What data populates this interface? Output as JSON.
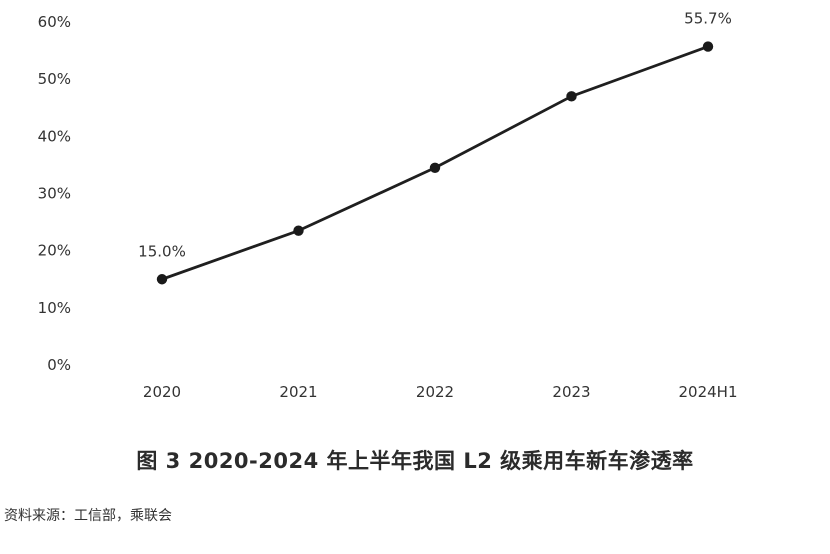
{
  "chart_data": {
    "type": "line",
    "title": "图 3 2020-2024 年上半年我国 L2 级乘用车新车渗透率",
    "xlabel": "",
    "ylabel": "",
    "categories": [
      "2020",
      "2021",
      "2022",
      "2023",
      "2024H1"
    ],
    "series": [
      {
        "values": [
          15.0,
          23.5,
          34.5,
          47.0,
          55.7
        ]
      }
    ],
    "ylim": [
      0,
      60
    ],
    "yticks": [
      "0%",
      "10%",
      "20%",
      "30%",
      "40%",
      "50%",
      "60%"
    ],
    "annotations": [
      {
        "category": "2020",
        "text": "15.0%"
      },
      {
        "category": "2024H1",
        "text": "55.7%"
      }
    ],
    "grid": false,
    "legend": "none"
  },
  "caption": "图 3 2020-2024 年上半年我国 L2 级乘用车新车渗透率",
  "source": "资料来源：工信部，乘联会",
  "colors": {
    "line": "#1f1f1f",
    "marker": "#1a1a1a",
    "text": "#333333"
  }
}
